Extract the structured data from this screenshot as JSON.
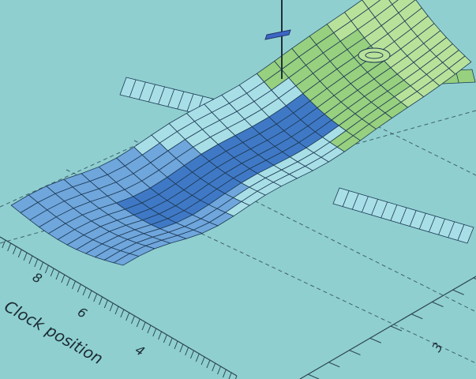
{
  "colors": {
    "background": "#8fcfd0",
    "grid": "#2c4656",
    "band_low": "#a8dfe6",
    "band_mid": "#6fa6dc",
    "band_deep": "#3f79c6",
    "band_high": "#97d07e",
    "band_top": "#b8e29a",
    "mesh": "#1d3a55"
  },
  "axis": {
    "clock_label": "Clock position",
    "clock_ticks": [
      "8",
      "6",
      "4"
    ],
    "right_ticks": [
      "3"
    ]
  },
  "chart_data": {
    "type": "surface",
    "title": "",
    "xlabel": "Clock position",
    "x_ticks": [
      "8",
      "6",
      "4"
    ],
    "y_ticks": [
      "3"
    ],
    "grid": true
  }
}
